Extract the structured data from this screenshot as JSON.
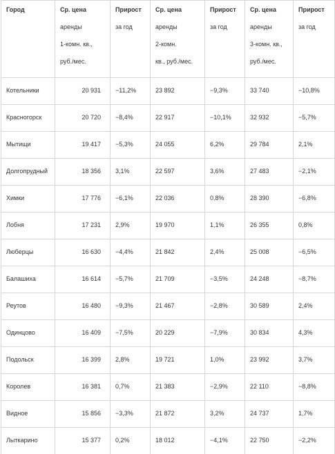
{
  "table": {
    "header": [
      {
        "lines": [
          "Город"
        ]
      },
      {
        "lines": [
          "Ср. цена",
          "аренды",
          "1-комн. кв.,",
          "руб./мес."
        ]
      },
      {
        "lines": [
          "Прирост",
          "за год"
        ]
      },
      {
        "lines": [
          "Ср. цена",
          "аренды",
          "2-комн.",
          "кв., руб./мес."
        ]
      },
      {
        "lines": [
          "Прирост",
          "за год"
        ]
      },
      {
        "lines": [
          "Ср. цена",
          "аренды",
          "3-комн. кв.,",
          "руб./мес."
        ]
      },
      {
        "lines": [
          "Прирост",
          "за год"
        ]
      }
    ],
    "rows": [
      [
        "Котельники",
        "20 931",
        "−11,2%",
        "23 892",
        "−9,3%",
        "33 740",
        "−10,8%"
      ],
      [
        "Красногорск",
        "20 720",
        "−8,4%",
        "22 917",
        "−10,1%",
        "32 932",
        "−5,7%"
      ],
      [
        "Мытищи",
        "19 417",
        "−5,3%",
        "24 055",
        "6,2%",
        "29 784",
        "2,1%"
      ],
      [
        "Долгопрудный",
        "18 356",
        "3,1%",
        "22 597",
        "3,6%",
        "27 483",
        "−2,1%"
      ],
      [
        "Химки",
        "17 776",
        "−6,1%",
        "22 036",
        "0,8%",
        "28 390",
        "−6,8%"
      ],
      [
        "Лобня",
        "17 231",
        "2,9%",
        "19 970",
        "1,1%",
        "26 355",
        "0,8%"
      ],
      [
        "Люберцы",
        "16 630",
        "−4,4%",
        "21 842",
        "2,4%",
        "25 008",
        "−6,5%"
      ],
      [
        "Балашиха",
        "16 614",
        "−5,7%",
        "21 709",
        "−3,5%",
        "24 248",
        "−8,7%"
      ],
      [
        "Реутов",
        "16 480",
        "−9,3%",
        "21 467",
        "−2,8%",
        "30 589",
        "2,4%"
      ],
      [
        "Одинцово",
        "16 409",
        "−7,5%",
        "20 229",
        "−7,9%",
        "30 834",
        "4,3%"
      ],
      [
        "Подольск",
        "16 399",
        "2,8%",
        "19 721",
        "1,0%",
        "23 992",
        "3,7%"
      ],
      [
        "Королев",
        "16 381",
        "0,7%",
        "21 383",
        "−2,9%",
        "22 110",
        "−8,8%"
      ],
      [
        "Видное",
        "15 856",
        "−3,3%",
        "21 872",
        "3,2%",
        "24 737",
        "1,7%"
      ],
      [
        "Лыткарино",
        "15 377",
        "0,2%",
        "18 012",
        "−4,1%",
        "22 750",
        "−2,2%"
      ]
    ]
  }
}
